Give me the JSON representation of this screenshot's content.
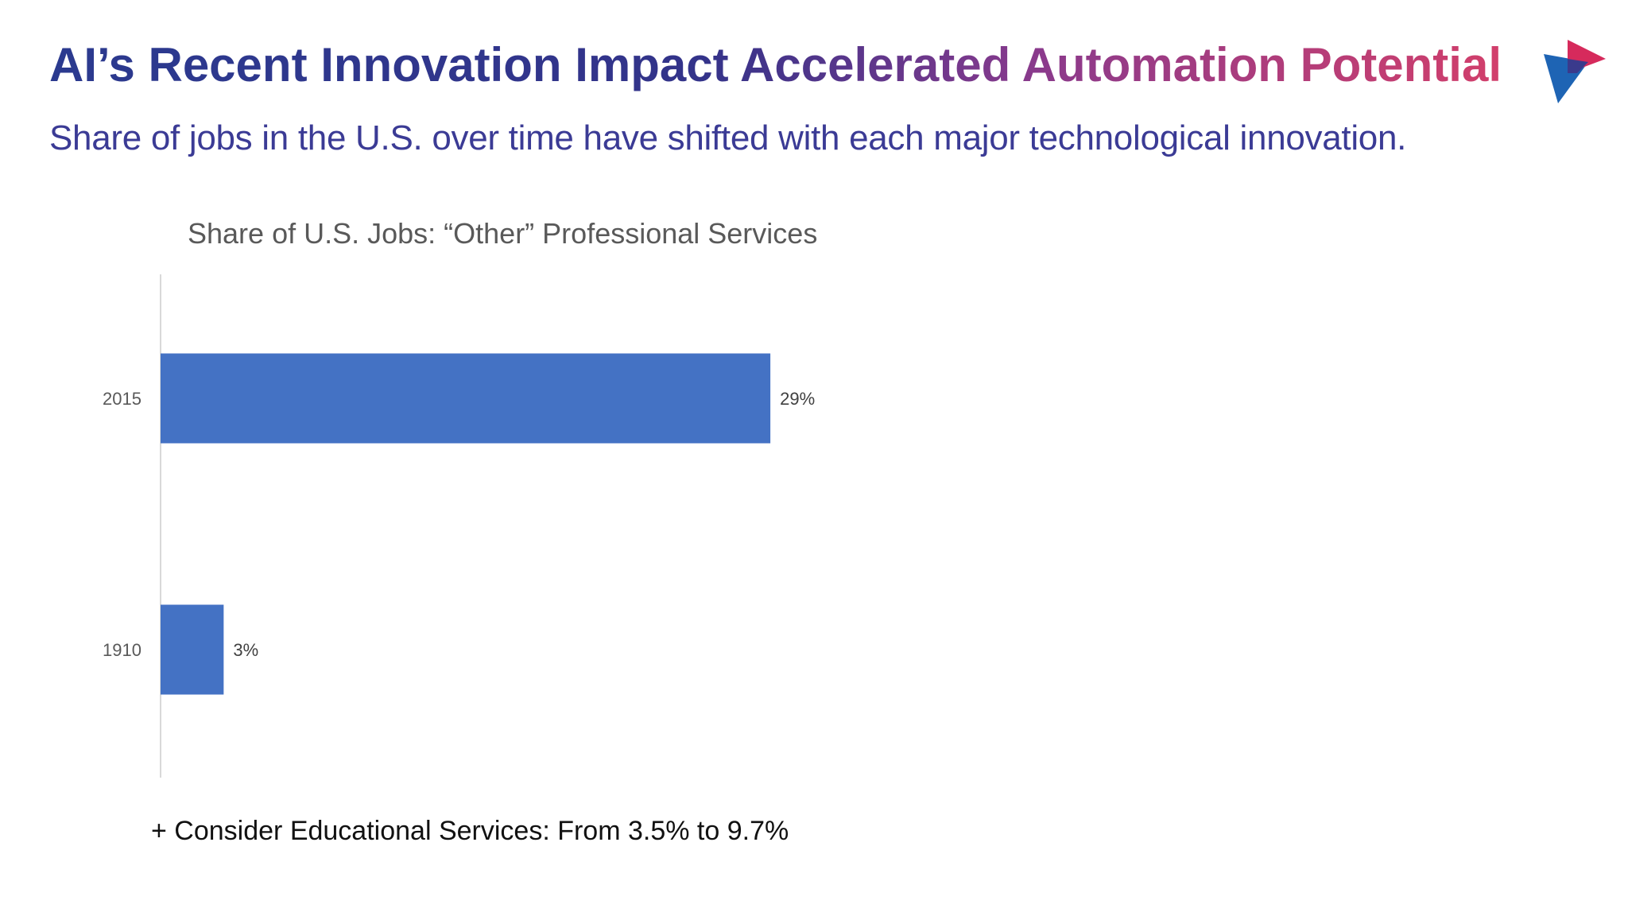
{
  "slide": {
    "title": "AI’s Recent Innovation Impact Accelerated Automation Potential",
    "subtitle": "Share of jobs in the U.S. over time have shifted with each major technological innovation.",
    "footnote": "+ Consider Educational Services: From 3.5% to 9.7%"
  },
  "logo": {
    "icon": "play-triangle-logo-icon",
    "colors": [
      "#1e64b4",
      "#3a3a8c",
      "#d62a5c"
    ]
  },
  "colors": {
    "bar": "#4472c4",
    "axis": "#d9d9d9",
    "title_gradient_start": "#2b3a8f",
    "title_gradient_end": "#d23f6b"
  },
  "chart_data": {
    "type": "bar",
    "orientation": "horizontal",
    "title": "Share of U.S. Jobs: “Other” Professional Services",
    "categories": [
      "2015",
      "1910"
    ],
    "values": [
      29,
      3
    ],
    "data_labels": [
      "29%",
      "3%"
    ],
    "unit": "%",
    "xlabel": "",
    "ylabel": "",
    "xlim": [
      0,
      31
    ],
    "grid": false,
    "legend": "none"
  }
}
